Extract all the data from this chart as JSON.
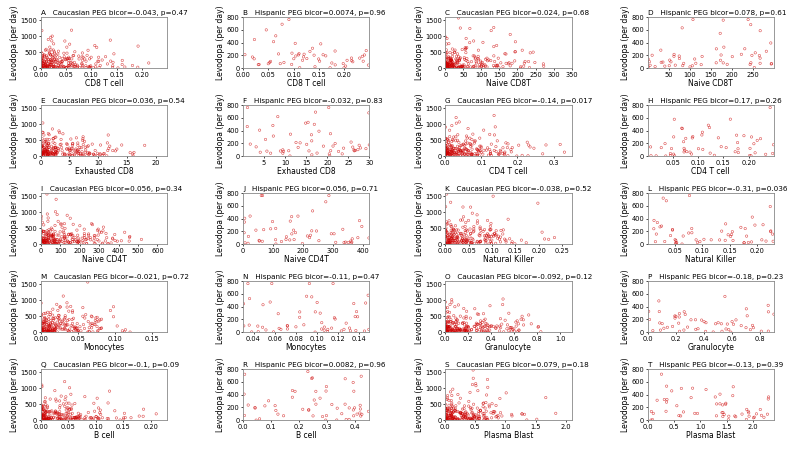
{
  "panels": [
    {
      "label": "A",
      "title": "Caucasian PEG bicor=-0.043, p=0.47",
      "xlabel": "CD8 T cell",
      "xlim": [
        0.0,
        0.25
      ],
      "ylim": [
        0,
        1600
      ],
      "yticks": [
        0,
        500,
        1000,
        1500
      ],
      "xticks": [
        0.0,
        0.05,
        0.1,
        0.15,
        0.2
      ],
      "xticklabels": [
        "0.00",
        "0.05",
        "0.10",
        "0.15",
        "0.20"
      ],
      "pop": "caucasian"
    },
    {
      "label": "B",
      "title": "Hispanic PEG bicor=0.0074, p=0.96",
      "xlabel": "CD8 T cell",
      "xlim": [
        0.0,
        0.25
      ],
      "ylim": [
        0,
        800
      ],
      "yticks": [
        0,
        200,
        400,
        600,
        800
      ],
      "xticks": [
        0.0,
        0.05,
        0.1,
        0.15,
        0.2
      ],
      "xticklabels": [
        "0.00",
        "0.05",
        "0.10",
        "0.15",
        "0.20"
      ],
      "pop": "hispanic"
    },
    {
      "label": "C",
      "title": "Caucasian PEG bicor=0.024, p=0.68",
      "xlabel": "Naive CD8T",
      "xlim": [
        0,
        350
      ],
      "ylim": [
        0,
        1600
      ],
      "yticks": [
        0,
        500,
        1000,
        1500
      ],
      "xticks": [
        0,
        50,
        100,
        150,
        200,
        250,
        300,
        350
      ],
      "xticklabels": [
        "0",
        "50",
        "100",
        "150",
        "200",
        "250",
        "300",
        "350"
      ],
      "pop": "caucasian"
    },
    {
      "label": "D",
      "title": "Hispanic PEG bicor=0.078, p=0.61",
      "xlabel": "Naive CD8T",
      "xlim": [
        0,
        300
      ],
      "ylim": [
        0,
        800
      ],
      "yticks": [
        0,
        200,
        400,
        600,
        800
      ],
      "xticks": [
        50,
        100,
        150,
        200,
        250
      ],
      "xticklabels": [
        "50",
        "100",
        "150",
        "200",
        "250"
      ],
      "pop": "hispanic"
    },
    {
      "label": "E",
      "title": "Caucasian PEG bicor=0.036, p=0.54",
      "xlabel": "Exhausted CD8",
      "xlim": [
        0,
        22
      ],
      "ylim": [
        0,
        1600
      ],
      "yticks": [
        0,
        500,
        1000,
        1500
      ],
      "xticks": [
        0,
        5,
        10,
        15,
        20
      ],
      "xticklabels": [
        "0",
        "5",
        "10",
        "15",
        "20"
      ],
      "pop": "caucasian"
    },
    {
      "label": "F",
      "title": "Hispanic PEG bicor=-0.032, p=0.83",
      "xlabel": "Exhausted CD8",
      "xlim": [
        0,
        30
      ],
      "ylim": [
        0,
        800
      ],
      "yticks": [
        0,
        200,
        400,
        600,
        800
      ],
      "xticks": [
        5,
        10,
        15,
        20,
        25,
        30
      ],
      "xticklabels": [
        "5",
        "10",
        "15",
        "20",
        "25",
        "30"
      ],
      "pop": "hispanic"
    },
    {
      "label": "G",
      "title": "Caucasian PEG bicor=-0.14, p=0.017",
      "xlabel": "CD4 T cell",
      "xlim": [
        0.0,
        0.35
      ],
      "ylim": [
        0,
        1600
      ],
      "yticks": [
        0,
        500,
        1000,
        1500
      ],
      "xticks": [
        0.0,
        0.1,
        0.2,
        0.3
      ],
      "xticklabels": [
        "0.0",
        "0.1",
        "0.2",
        "0.3"
      ],
      "pop": "caucasian"
    },
    {
      "label": "H",
      "title": "Hispanic PEG bicor=0.17, p=0.26",
      "xlabel": "CD4 T cell",
      "xlim": [
        0.0,
        0.25
      ],
      "ylim": [
        0,
        800
      ],
      "yticks": [
        0,
        200,
        400,
        600,
        800
      ],
      "xticks": [
        0.05,
        0.1,
        0.15,
        0.2
      ],
      "xticklabels": [
        "0.05",
        "0.10",
        "0.15",
        "0.20"
      ],
      "pop": "hispanic"
    },
    {
      "label": "I",
      "title": "Caucasian PEG bicor=0.056, p=0.34",
      "xlabel": "Naive CD4T",
      "xlim": [
        0,
        650
      ],
      "ylim": [
        0,
        1600
      ],
      "yticks": [
        0,
        500,
        1000,
        1500
      ],
      "xticks": [
        0,
        100,
        200,
        300,
        400,
        500,
        600
      ],
      "xticklabels": [
        "0",
        "100",
        "200",
        "300",
        "400",
        "500",
        "600"
      ],
      "pop": "caucasian"
    },
    {
      "label": "J",
      "title": "Hispanic PEG bicor=0.056, p=0.71",
      "xlabel": "Naive CD4T",
      "xlim": [
        0,
        420
      ],
      "ylim": [
        0,
        800
      ],
      "yticks": [
        0,
        200,
        400,
        600,
        800
      ],
      "xticks": [
        0,
        100,
        200,
        300,
        400
      ],
      "xticklabels": [
        "0",
        "100",
        "200",
        "300",
        "400"
      ],
      "pop": "hispanic"
    },
    {
      "label": "K",
      "title": "Caucasian PEG bicor=-0.038, p=0.52",
      "xlabel": "Natural Killer",
      "xlim": [
        0.0,
        0.27
      ],
      "ylim": [
        0,
        1600
      ],
      "yticks": [
        0,
        500,
        1000,
        1500
      ],
      "xticks": [
        0.0,
        0.05,
        0.1,
        0.15,
        0.2,
        0.25
      ],
      "xticklabels": [
        "0.00",
        "0.05",
        "0.10",
        "0.15",
        "0.20",
        "0.25"
      ],
      "pop": "caucasian"
    },
    {
      "label": "L",
      "title": "Hispanic PEG bicor=-0.31, p=0.036",
      "xlabel": "Natural Killer",
      "xlim": [
        0.0,
        0.23
      ],
      "ylim": [
        0,
        800
      ],
      "yticks": [
        0,
        200,
        400,
        600,
        800
      ],
      "xticks": [
        0.05,
        0.1,
        0.15,
        0.2
      ],
      "xticklabels": [
        "0.05",
        "0.10",
        "0.15",
        "0.20"
      ],
      "pop": "hispanic"
    },
    {
      "label": "M",
      "title": "Caucasian PEG bicor=-0.021, p=0.72",
      "xlabel": "Monocytes",
      "xlim": [
        0.0,
        0.17
      ],
      "ylim": [
        0,
        1600
      ],
      "yticks": [
        0,
        500,
        1000,
        1500
      ],
      "xticks": [
        0.0,
        0.05,
        0.1,
        0.15
      ],
      "xticklabels": [
        "0.00",
        "0.05",
        "0.10",
        "0.15"
      ],
      "pop": "caucasian"
    },
    {
      "label": "N",
      "title": "Hispanic PEG bicor=-0.11, p=0.47",
      "xlabel": "Monocytes",
      "xlim": [
        0.03,
        0.15
      ],
      "ylim": [
        0,
        800
      ],
      "yticks": [
        0,
        200,
        400,
        600,
        800
      ],
      "xticks": [
        0.04,
        0.06,
        0.08,
        0.1,
        0.12,
        0.14
      ],
      "xticklabels": [
        "0.04",
        "0.06",
        "0.08",
        "0.10",
        "0.12",
        "0.14"
      ],
      "pop": "hispanic"
    },
    {
      "label": "O",
      "title": "Caucasian PEG bicor=-0.092, p=0.12",
      "xlabel": "Granulocyte",
      "xlim": [
        0.0,
        1.1
      ],
      "ylim": [
        0,
        1600
      ],
      "yticks": [
        0,
        500,
        1000,
        1500
      ],
      "xticks": [
        0.0,
        0.2,
        0.4,
        0.6,
        0.8,
        1.0
      ],
      "xticklabels": [
        "0.0",
        "0.2",
        "0.4",
        "0.6",
        "0.8",
        "1.0"
      ],
      "pop": "caucasian"
    },
    {
      "label": "P",
      "title": "Hispanic PEG bicor=-0.18, p=0.23",
      "xlabel": "Granulocyte",
      "xlim": [
        0.0,
        0.9
      ],
      "ylim": [
        0,
        800
      ],
      "yticks": [
        0,
        200,
        400,
        600,
        800
      ],
      "xticks": [
        0.0,
        0.2,
        0.4,
        0.6,
        0.8
      ],
      "xticklabels": [
        "0.0",
        "0.2",
        "0.4",
        "0.6",
        "0.8"
      ],
      "pop": "hispanic"
    },
    {
      "label": "Q",
      "title": "Caucasian PEG bicor=-0.1, p=0.09",
      "xlabel": "B cell",
      "xlim": [
        0.0,
        0.23
      ],
      "ylim": [
        0,
        1600
      ],
      "yticks": [
        0,
        500,
        1000,
        1500
      ],
      "xticks": [
        0.0,
        0.05,
        0.1,
        0.15,
        0.2
      ],
      "xticklabels": [
        "0.00",
        "0.05",
        "0.10",
        "0.15",
        "0.20"
      ],
      "pop": "caucasian"
    },
    {
      "label": "R",
      "title": "Hispanic PEG bicor=0.0082, p=0.96",
      "xlabel": "B cell",
      "xlim": [
        0.0,
        0.45
      ],
      "ylim": [
        0,
        800
      ],
      "yticks": [
        0,
        200,
        400,
        600,
        800
      ],
      "xticks": [
        0.0,
        0.1,
        0.2,
        0.3,
        0.4
      ],
      "xticklabels": [
        "0.0",
        "0.1",
        "0.2",
        "0.3",
        "0.4"
      ],
      "pop": "hispanic"
    },
    {
      "label": "S",
      "title": "Caucasian PEG bicor=0.079, p=0.18",
      "xlabel": "Plasma Blast",
      "xlim": [
        0.0,
        2.1
      ],
      "ylim": [
        0,
        1600
      ],
      "yticks": [
        0,
        500,
        1000,
        1500
      ],
      "xticks": [
        0.0,
        0.5,
        1.0,
        1.5,
        2.0
      ],
      "xticklabels": [
        "0.0",
        "0.5",
        "1.0",
        "1.5",
        "2.0"
      ],
      "pop": "caucasian"
    },
    {
      "label": "T",
      "title": "Hispanic PEG bicor=-0.13, p=0.39",
      "xlabel": "Plasma Blast",
      "xlim": [
        0.0,
        2.4
      ],
      "ylim": [
        0,
        800
      ],
      "yticks": [
        0,
        200,
        400,
        600,
        800
      ],
      "xticks": [
        0.0,
        0.5,
        1.0,
        1.5,
        2.0
      ],
      "xticklabels": [
        "0.0",
        "0.5",
        "1.0",
        "1.5",
        "2.0"
      ],
      "pop": "hispanic"
    }
  ],
  "dot_color": "#CC0000",
  "dot_facecolor": "none",
  "dot_edgecolor": "#CC0000",
  "dot_alpha": 0.7,
  "dot_size": 3,
  "ylabel": "Levodopa (per day)",
  "bg_color": "#ffffff",
  "border_color": "#888888",
  "title_fontsize": 5.2,
  "label_fontsize": 5.5,
  "tick_fontsize": 4.8
}
